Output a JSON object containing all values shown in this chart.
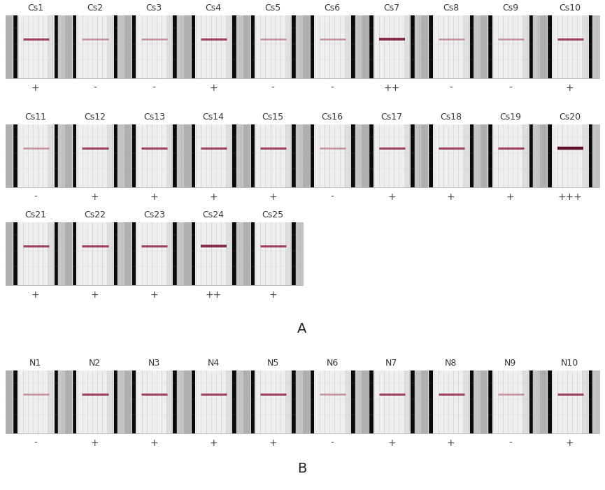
{
  "background_color": "#ffffff",
  "panel_A": {
    "rows": [
      {
        "labels": [
          "Cs1",
          "Cs2",
          "Cs3",
          "Cs4",
          "Cs5",
          "Cs6",
          "Cs7",
          "Cs8",
          "Cs9",
          "Cs10"
        ],
        "results": [
          "+",
          "-",
          "-",
          "+",
          "-",
          "-",
          "++",
          "-",
          "-",
          "+"
        ],
        "n_cols": 10
      },
      {
        "labels": [
          "Cs11",
          "Cs12",
          "Cs13",
          "Cs14",
          "Cs15",
          "Cs16",
          "Cs17",
          "Cs18",
          "Cs19",
          "Cs20"
        ],
        "results": [
          "-",
          "+",
          "+",
          "+",
          "+",
          "-",
          "+",
          "+",
          "+",
          "+++"
        ],
        "n_cols": 10
      },
      {
        "labels": [
          "Cs21",
          "Cs22",
          "Cs23",
          "Cs24",
          "Cs25"
        ],
        "results": [
          "+",
          "+",
          "+",
          "++",
          "+"
        ],
        "n_cols": 5
      }
    ],
    "section_label": "A"
  },
  "panel_B": {
    "rows": [
      {
        "labels": [
          "N1",
          "N2",
          "N3",
          "N4",
          "N5",
          "N6",
          "N7",
          "N8",
          "N9",
          "N10"
        ],
        "results": [
          "-",
          "+",
          "+",
          "+",
          "+",
          "-",
          "+",
          "+",
          "-",
          "+"
        ],
        "n_cols": 10
      }
    ],
    "section_label": "B"
  },
  "label_color": "#333333",
  "result_color": "#444444",
  "font_size_label": 9,
  "font_size_result": 10,
  "font_size_section": 14
}
